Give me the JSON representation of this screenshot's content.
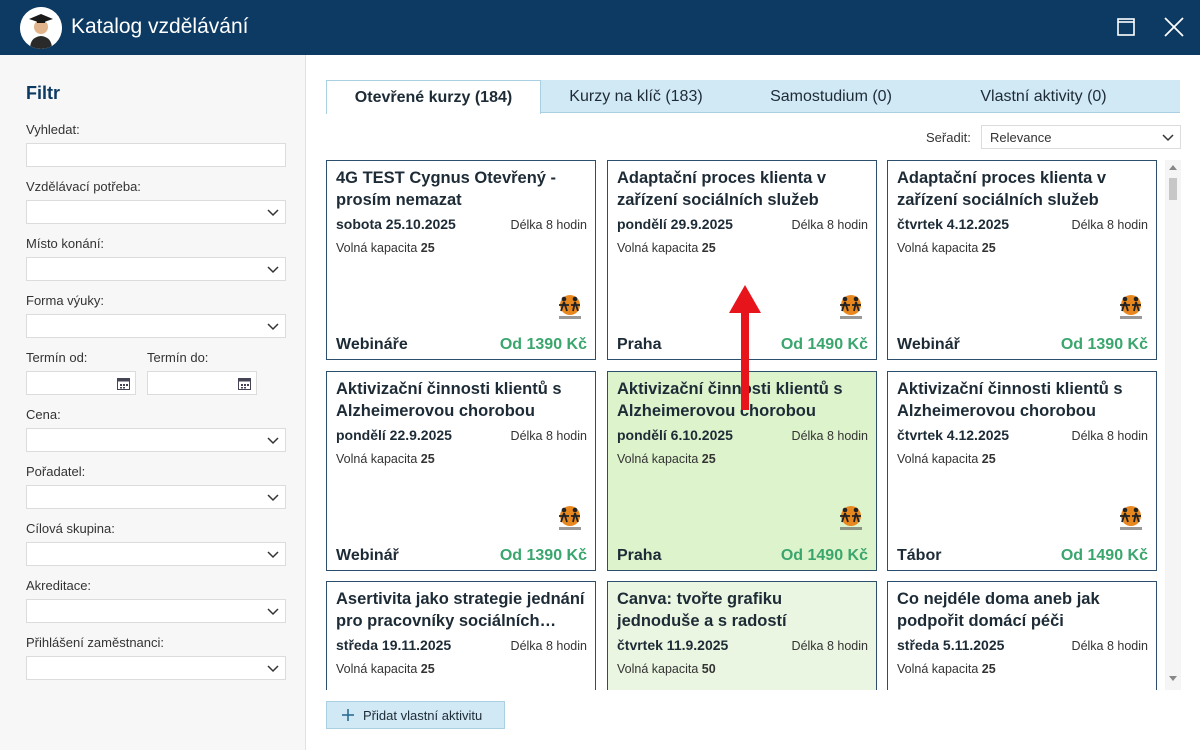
{
  "window": {
    "title": "Katalog vzdělávání",
    "colors": {
      "titlebar": "#0c3a63",
      "accent": "#3aa66d",
      "tab_bg": "#d1e8f5",
      "selected_card": "#ddf3cc"
    }
  },
  "sidebar": {
    "title": "Filtr",
    "search_label": "Vyhledat:",
    "fields": [
      {
        "label": "Vzdělávací potřeba:"
      },
      {
        "label": "Místo konání:"
      },
      {
        "label": "Forma výuky:"
      },
      {
        "label": "Cena:"
      },
      {
        "label": "Pořadatel:"
      },
      {
        "label": "Cílová skupina:"
      },
      {
        "label": "Akreditace:"
      },
      {
        "label": "Přihlášení zaměstnanci:"
      }
    ],
    "date_from_label": "Termín od:",
    "date_to_label": "Termín do:"
  },
  "tabs": [
    {
      "label": "Otevřené kurzy (184)",
      "active": true
    },
    {
      "label": "Kurzy na klíč (183)",
      "active": false
    },
    {
      "label": "Samostudium (0)",
      "active": false
    },
    {
      "label": "Vlastní aktivity (0)",
      "active": false
    }
  ],
  "sort": {
    "label": "Seřadit:",
    "value": "Relevance"
  },
  "cards": [
    {
      "title": "4G TEST Cygnus  Otevřený - prosím nemazat",
      "date": "sobota 25.10.2025",
      "duration": "Délka 8 hodin",
      "capacity_label": "Volná kapacita",
      "capacity": "25",
      "location": "Webináře",
      "price": "Od 1390 Kč",
      "state": "normal"
    },
    {
      "title": "Adaptační proces klienta v zařízení sociálních služeb",
      "date": "pondělí 29.9.2025",
      "duration": "Délka 8 hodin",
      "capacity_label": "Volná kapacita",
      "capacity": "25",
      "location": "Praha",
      "price": "Od 1490 Kč",
      "state": "normal"
    },
    {
      "title": "Adaptační proces klienta v zařízení sociálních služeb",
      "date": "čtvrtek 4.12.2025",
      "duration": "Délka 8 hodin",
      "capacity_label": "Volná kapacita",
      "capacity": "25",
      "location": "Webinář",
      "price": "Od 1390 Kč",
      "state": "normal"
    },
    {
      "title": "Aktivizační činnosti klientů s Alzheimerovou chorobou",
      "date": "pondělí 22.9.2025",
      "duration": "Délka 8 hodin",
      "capacity_label": "Volná kapacita",
      "capacity": "25",
      "location": "Webinář",
      "price": "Od 1390 Kč",
      "state": "normal"
    },
    {
      "title": "Aktivizační činnosti klientů s Alzheimerovou chorobou",
      "date": "pondělí 6.10.2025",
      "duration": "Délka 8 hodin",
      "capacity_label": "Volná kapacita",
      "capacity": "25",
      "location": "Praha",
      "price": "Od 1490 Kč",
      "state": "selected"
    },
    {
      "title": "Aktivizační činnosti klientů s Alzheimerovou chorobou",
      "date": "čtvrtek 4.12.2025",
      "duration": "Délka 8 hodin",
      "capacity_label": "Volná kapacita",
      "capacity": "25",
      "location": "Tábor",
      "price": "Od 1490 Kč",
      "state": "normal"
    },
    {
      "title": "Asertivita jako strategie jednání pro pracovníky sociálních služeb",
      "date": "středa 19.11.2025",
      "duration": "Délka 8 hodin",
      "capacity_label": "Volná kapacita",
      "capacity": "25",
      "location": "",
      "price": "",
      "state": "normal"
    },
    {
      "title": "Canva: tvořte grafiku jednoduše a s radostí",
      "date": "čtvrtek 11.9.2025",
      "duration": "Délka 8 hodin",
      "capacity_label": "Volná kapacita",
      "capacity": "50",
      "location": "",
      "price": "",
      "state": "hover"
    },
    {
      "title": "Co nejdéle doma aneb jak podpořit domácí péči",
      "date": "středa 5.11.2025",
      "duration": "Délka 8 hodin",
      "capacity_label": "Volná kapacita",
      "capacity": "25",
      "location": "",
      "price": "",
      "state": "normal"
    }
  ],
  "add_button": {
    "label": "Přidat vlastní aktivitu"
  }
}
